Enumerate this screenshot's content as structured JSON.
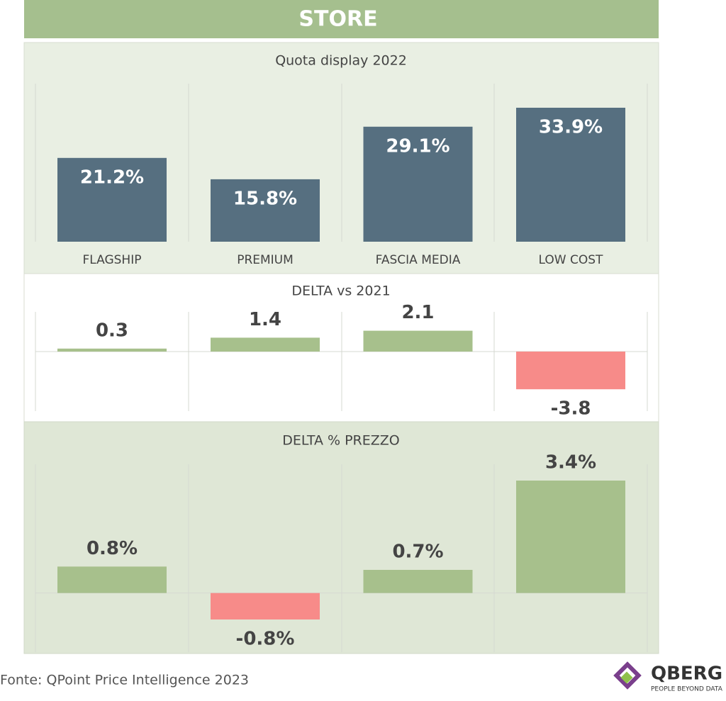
{
  "header": {
    "title": "STORE"
  },
  "chart_data": [
    {
      "type": "bar",
      "title": "Quota display 2022",
      "categories": [
        "FLAGSHIP",
        "PREMIUM",
        "FASCIA MEDIA",
        "LOW COST"
      ],
      "values": [
        21.2,
        15.8,
        29.1,
        33.9
      ],
      "value_labels": [
        "21.2%",
        "15.8%",
        "29.1%",
        "33.9%"
      ],
      "color": "#566f80",
      "labels_inside": true,
      "ylim": [
        0,
        40
      ]
    },
    {
      "type": "bar",
      "title": "DELTA vs 2021",
      "values": [
        0.3,
        1.4,
        2.1,
        -3.8
      ],
      "positive_color": "#a7c08c",
      "negative_color": "#f78b89",
      "ylim": [
        -6,
        4
      ]
    },
    {
      "type": "bar",
      "title": "DELTA % PREZZO",
      "values": [
        0.8,
        -0.8,
        0.7,
        3.4
      ],
      "value_labels": [
        "0.8%",
        "-0.8%",
        "0.7%",
        "3.4%"
      ],
      "positive_color": "#a7c08c",
      "negative_color": "#f78b89",
      "ylim": [
        -2,
        4
      ]
    }
  ],
  "footer": {
    "source": "Fonte: QPoint Price Intelligence 2023",
    "logo": "QBERG",
    "tagline": "PEOPLE BEYOND DATA"
  }
}
